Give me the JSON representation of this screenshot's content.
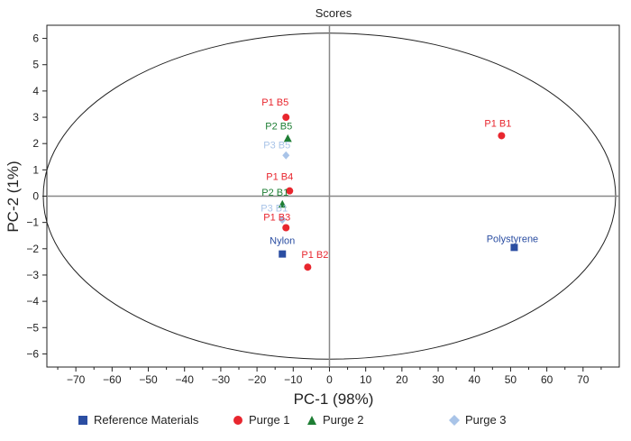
{
  "chart_data": {
    "type": "scatter",
    "title": "Scores",
    "xlabel": "PC-1 (98%)",
    "ylabel": "PC-2 (1%)",
    "xlim": [
      -78,
      80
    ],
    "ylim": [
      -6.5,
      6.5
    ],
    "xticks": [
      -70,
      -60,
      -50,
      -40,
      -30,
      -20,
      -10,
      0,
      10,
      20,
      30,
      40,
      50,
      60,
      70
    ],
    "yticks": [
      6,
      5,
      4,
      3,
      2,
      1,
      0,
      -1,
      -2,
      -3,
      -4,
      -5,
      -6
    ],
    "xtick_labels": [
      "−70",
      "−60",
      "−50",
      "−40",
      "−30",
      "−20",
      "−10",
      "0",
      "10",
      "20",
      "30",
      "40",
      "50",
      "60",
      "70"
    ],
    "ytick_labels": [
      "6",
      "5",
      "4",
      "3",
      "2",
      "1",
      "0",
      "−1",
      "−2",
      "−3",
      "−4",
      "−5",
      "−6"
    ],
    "ellipse": {
      "cx": 0,
      "cy": 0,
      "rx": 79,
      "ry": 6.2
    },
    "series": [
      {
        "name": "Reference Materials",
        "marker": "square",
        "color": "#2b4ea2",
        "points": [
          {
            "label": "Nylon",
            "x": -13,
            "y": -2.2
          },
          {
            "label": "Polystyrene",
            "x": 51,
            "y": -1.95
          }
        ]
      },
      {
        "name": "Purge 1",
        "marker": "circle",
        "color": "#e8262e",
        "points": [
          {
            "label": "P1 B1",
            "x": 47.5,
            "y": 2.3
          },
          {
            "label": "P1 B2",
            "x": -6,
            "y": -2.7
          },
          {
            "label": "P1 B3",
            "x": -12,
            "y": -1.2
          },
          {
            "label": "P1 B4",
            "x": -11,
            "y": 0.2
          },
          {
            "label": "P1 B5",
            "x": -12,
            "y": 3.0
          }
        ]
      },
      {
        "name": "Purge 2",
        "marker": "triangle",
        "color": "#1e7e34",
        "points": [
          {
            "label": "P2 B1",
            "x": -13,
            "y": -0.3
          },
          {
            "label": "P2 B5",
            "x": -11.5,
            "y": 2.2
          }
        ]
      },
      {
        "name": "Purge 3",
        "marker": "diamond",
        "color": "#a9c4e8",
        "points": [
          {
            "label": "P3 B1",
            "x": -13,
            "y": -0.9
          },
          {
            "label": "P3 B5",
            "x": -12,
            "y": 1.55
          }
        ]
      }
    ],
    "legend": {
      "position": "bottom",
      "entries": [
        "Reference Materials",
        "Purge 1",
        "Purge 2",
        "Purge 3"
      ]
    }
  }
}
